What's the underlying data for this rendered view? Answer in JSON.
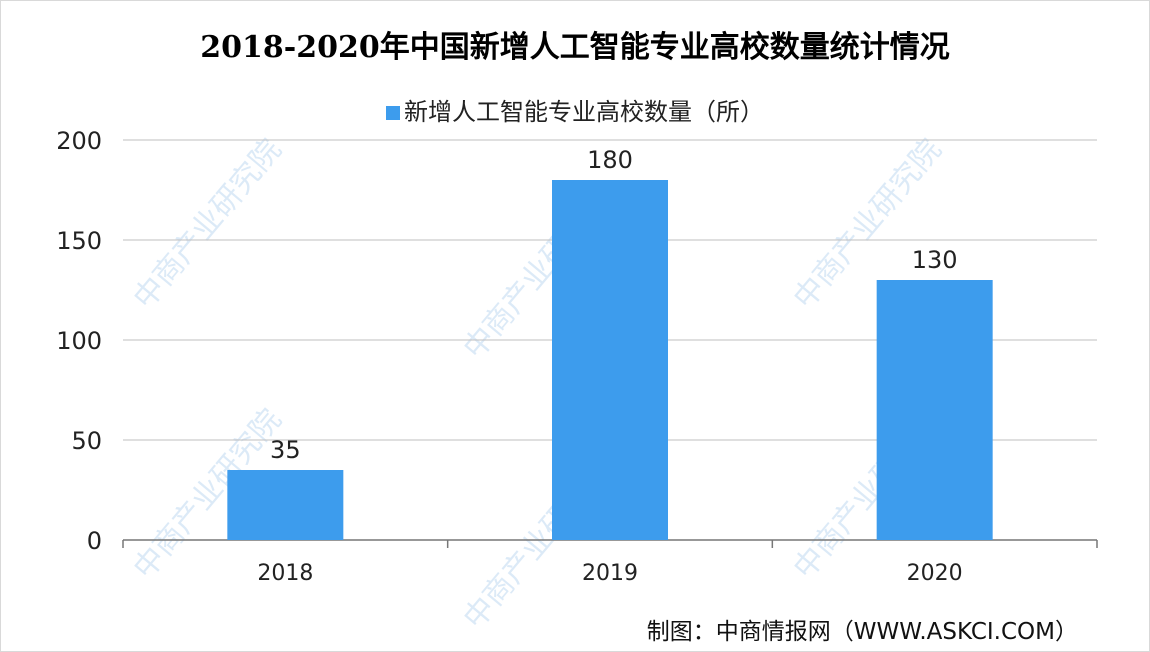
{
  "chart_data": {
    "type": "bar",
    "title": "2018-2020年中国新增人工智能专业高校数量统计情况",
    "categories": [
      "2018",
      "2019",
      "2020"
    ],
    "series": [
      {
        "name": "新增人工智能专业高校数量（所）",
        "values": [
          35,
          180,
          130
        ],
        "color": "#3d9ced"
      }
    ],
    "data_labels": [
      "35",
      "180",
      "130"
    ],
    "yticks": [
      "0",
      "50",
      "100",
      "150",
      "200"
    ],
    "ylim": [
      0,
      200
    ],
    "grid": true,
    "legend": "top-center",
    "xlabel": "",
    "ylabel": ""
  },
  "source": "制图：中商情报网（WWW.ASKCI.COM）",
  "watermark": "中商产业研究院"
}
